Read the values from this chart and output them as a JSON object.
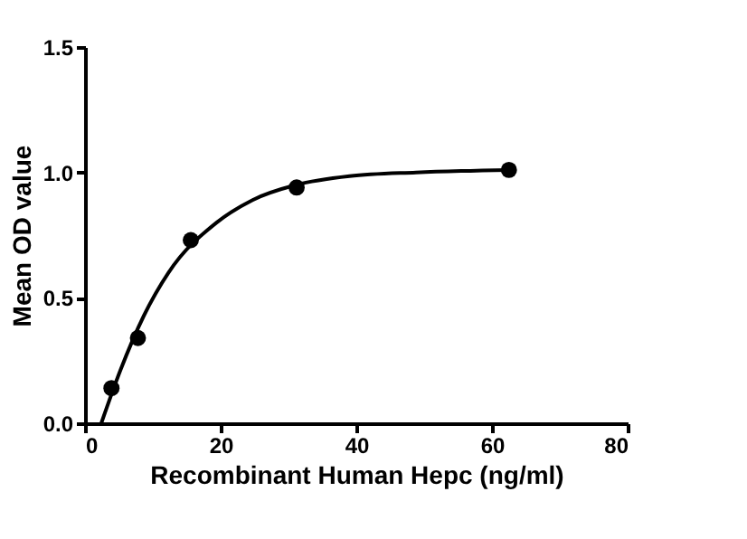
{
  "chart_data": {
    "type": "scatter",
    "xlabel": "Recombinant Human Hepc (ng/ml)",
    "ylabel": "Mean OD value",
    "xlim": [
      0,
      80
    ],
    "xticks": [
      0,
      20,
      40,
      60,
      80
    ],
    "ylim": [
      0,
      1.5
    ],
    "yticks": [
      {
        "value": 0,
        "label": "0.0"
      },
      {
        "value": 0.5,
        "label": "0.5"
      },
      {
        "value": 1,
        "label": "1.0"
      },
      {
        "value": 1.5,
        "label": "1.5"
      }
    ],
    "grid": false,
    "series": [
      {
        "color": "#000000",
        "marker": "circle",
        "x": [
          3.9,
          7.8,
          15.6,
          31.2,
          62.5
        ],
        "values": [
          0.14,
          0.34,
          0.73,
          0.94,
          1.01
        ]
      },
      {
        "type": "line",
        "color": "#000000",
        "line_style": "solid",
        "marker": "none",
        "x": [
          2.4,
          5.2,
          8.7,
          12.3,
          19.4,
          24.7,
          31.1,
          39,
          48.8,
          62.4
        ],
        "values": [
          0,
          0.21,
          0.43,
          0.6,
          0.8,
          0.89,
          0.95,
          0.985,
          1.0,
          1.01
        ]
      }
    ]
  }
}
